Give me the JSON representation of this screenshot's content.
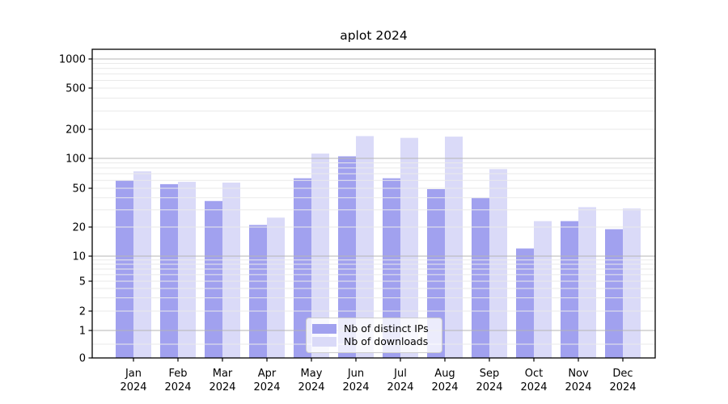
{
  "figure": {
    "title": "aplot 2024"
  },
  "chart_data": {
    "type": "bar",
    "title": "aplot 2024",
    "categories": [
      "Jan",
      "Feb",
      "Mar",
      "Apr",
      "May",
      "Jun",
      "Jul",
      "Aug",
      "Sep",
      "Oct",
      "Nov",
      "Dec"
    ],
    "category_year": "2024",
    "series": [
      {
        "name": "Nb of distinct IPs",
        "color": "#a1a1ef",
        "values": [
          60,
          55,
          37,
          21,
          63,
          105,
          63,
          49,
          40,
          12,
          23,
          19
        ]
      },
      {
        "name": "Nb of downloads",
        "color": "#dadaf8",
        "values": [
          74,
          58,
          57,
          25,
          112,
          170,
          163,
          168,
          78,
          23,
          32,
          31
        ]
      }
    ],
    "xlabel": "",
    "ylabel": "",
    "yticks": [
      0,
      1,
      2,
      5,
      10,
      20,
      50,
      100,
      200,
      500,
      1000
    ],
    "yscale": "symlog-like (log above 1, compressed linear below 1)",
    "ylim": [
      0,
      1300
    ],
    "grid": true,
    "grid_major_values": [
      1,
      10,
      100,
      1000
    ],
    "grid_minor_values": [
      0.5,
      3,
      4,
      6,
      7,
      8,
      9,
      30,
      40,
      60,
      70,
      80,
      90,
      300,
      400,
      600,
      700,
      800,
      900
    ],
    "legend_position": "lower-center-inside",
    "colors": {
      "bar_series_1": "#a1a1ef",
      "bar_series_2": "#dadaf8",
      "grid_major": "#b5b5b5",
      "grid_minor": "#eaeaea",
      "spine": "#000000",
      "text": "#000000",
      "background": "#ffffff"
    }
  }
}
